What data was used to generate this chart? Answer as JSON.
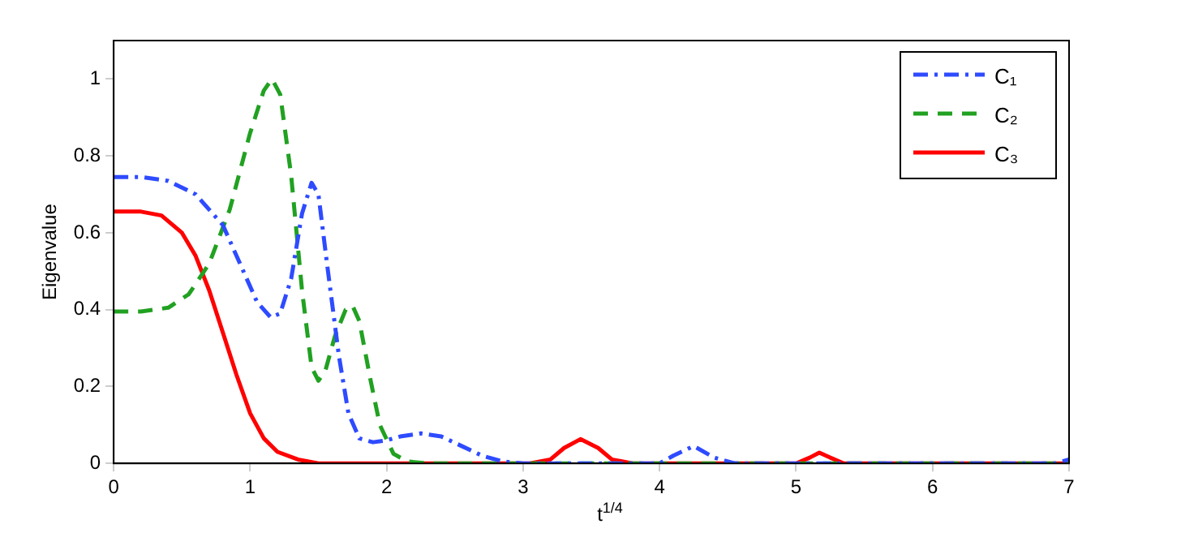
{
  "chart_data": {
    "type": "line",
    "xlabel": "t$^{1/4}$",
    "ylabel": "Eigenvalue",
    "xlim": [
      0,
      7
    ],
    "xticks": [
      0,
      1,
      2,
      3,
      4,
      5,
      6,
      7
    ],
    "ylim": [
      0,
      1.1
    ],
    "yticks": [
      0,
      0.2,
      0.4,
      0.6,
      0.8,
      1
    ],
    "grid": false,
    "legend": "top right",
    "marker": "none",
    "series": [
      {
        "name": "C₁",
        "color": "#2e4bff",
        "line_style": "dashdot",
        "x": [
          0,
          0.2,
          0.4,
          0.6,
          0.8,
          0.95,
          1.05,
          1.15,
          1.22,
          1.3,
          1.38,
          1.45,
          1.5,
          1.57,
          1.65,
          1.72,
          1.8,
          1.9,
          2.0,
          2.1,
          2.25,
          2.4,
          2.55,
          2.7,
          2.85,
          3.0,
          4.0,
          4.1,
          4.25,
          4.4,
          4.55,
          6.9,
          7
        ],
        "values": [
          0.745,
          0.745,
          0.735,
          0.7,
          0.62,
          0.5,
          0.42,
          0.38,
          0.39,
          0.48,
          0.65,
          0.73,
          0.7,
          0.5,
          0.28,
          0.13,
          0.065,
          0.055,
          0.06,
          0.07,
          0.078,
          0.07,
          0.045,
          0.02,
          0.005,
          0,
          0,
          0.02,
          0.045,
          0.015,
          0,
          0,
          0.01
        ]
      },
      {
        "name": "C₂",
        "color": "#21a121",
        "line_style": "dashed",
        "x": [
          0,
          0.2,
          0.4,
          0.55,
          0.7,
          0.85,
          1.0,
          1.1,
          1.16,
          1.22,
          1.3,
          1.38,
          1.45,
          1.5,
          1.55,
          1.62,
          1.7,
          1.75,
          1.8,
          1.88,
          1.95,
          2.05,
          2.15,
          2.3,
          7
        ],
        "values": [
          0.395,
          0.395,
          0.405,
          0.44,
          0.52,
          0.66,
          0.86,
          0.97,
          1.0,
          0.96,
          0.75,
          0.45,
          0.25,
          0.215,
          0.24,
          0.33,
          0.4,
          0.41,
          0.37,
          0.22,
          0.1,
          0.025,
          0.005,
          0,
          0
        ]
      },
      {
        "name": "C₃",
        "color": "#ff0000",
        "line_style": "solid",
        "x": [
          0,
          0.2,
          0.35,
          0.5,
          0.6,
          0.7,
          0.8,
          0.9,
          1.0,
          1.1,
          1.2,
          1.35,
          1.5,
          3.05,
          3.2,
          3.3,
          3.42,
          3.55,
          3.65,
          3.8,
          5.0,
          5.1,
          5.17,
          5.25,
          5.35,
          7
        ],
        "values": [
          0.655,
          0.655,
          0.645,
          0.6,
          0.54,
          0.45,
          0.34,
          0.23,
          0.13,
          0.065,
          0.03,
          0.01,
          0,
          0,
          0.01,
          0.04,
          0.063,
          0.04,
          0.01,
          0,
          0,
          0.015,
          0.028,
          0.015,
          0,
          0
        ]
      }
    ]
  }
}
